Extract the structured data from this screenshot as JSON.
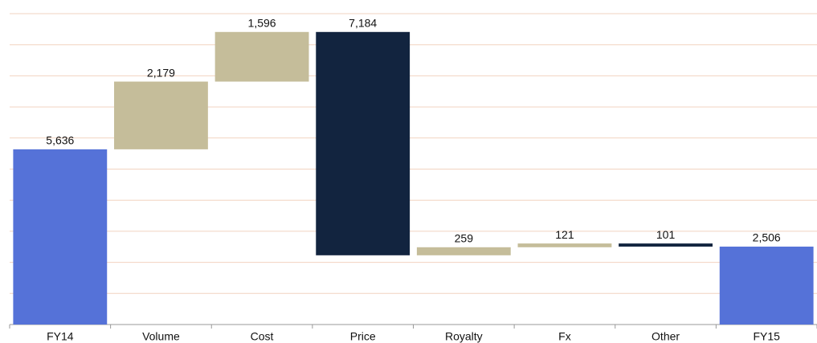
{
  "chart_data": {
    "type": "waterfall",
    "categories": [
      "FY14",
      "Volume",
      "Cost",
      "Price",
      "Royalty",
      "Fx",
      "Other",
      "FY15"
    ],
    "values": [
      5636,
      2179,
      1596,
      -7184,
      259,
      121,
      -101,
      2506
    ],
    "value_labels": [
      "5,636",
      "2,179",
      "1,596",
      "7,184",
      "259",
      "121",
      "101",
      "2,506"
    ],
    "measure": [
      "total",
      "relative",
      "relative",
      "relative",
      "relative",
      "relative",
      "relative",
      "total"
    ],
    "colors": {
      "total": "#5572d8",
      "increase": "#c5bd9a",
      "decrease": "#12243f"
    },
    "ylim": [
      0,
      10000
    ],
    "yticks": [
      0,
      1000,
      2000,
      3000,
      4000,
      5000,
      6000,
      7000,
      8000,
      9000,
      10000
    ],
    "grid": true
  }
}
